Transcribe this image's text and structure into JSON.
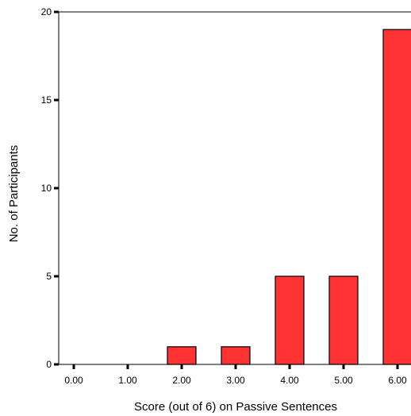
{
  "chart_data": {
    "type": "bar",
    "title": "",
    "xlabel": "Score (out of 6) on Passive Sentences",
    "ylabel": "No. of Participants",
    "categories": [
      "0.00",
      "1.00",
      "2.00",
      "3.00",
      "4.00",
      "5.00",
      "6.00"
    ],
    "values": [
      0,
      0,
      1,
      1,
      5,
      5,
      19
    ],
    "ylim": [
      0,
      20
    ],
    "yticks": [
      "0",
      "5",
      "10",
      "15",
      "20"
    ],
    "grid": false,
    "legend": "none",
    "colors": {
      "bar_fill": "#ff3333",
      "bar_stroke": "#000000"
    }
  }
}
